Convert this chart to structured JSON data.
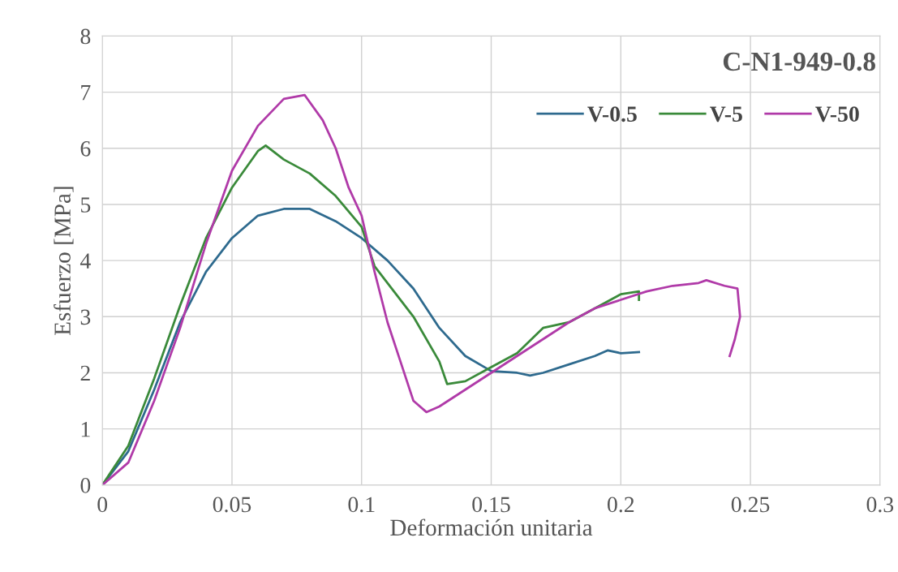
{
  "chart_data": {
    "type": "line",
    "title": "C-N1-949-0.8",
    "xlabel": "Deformación unitaria",
    "ylabel": "Esfuerzo [MPa]",
    "xlim": [
      0,
      0.3
    ],
    "xticks": [
      0,
      0.05,
      0.1,
      0.15,
      0.2,
      0.25,
      0.3
    ],
    "ylim": [
      0,
      8
    ],
    "yticks": [
      0,
      1,
      2,
      3,
      4,
      5,
      6,
      7,
      8
    ],
    "grid": true,
    "legend": "top right",
    "marker": "none",
    "line_style": "solid",
    "series": [
      {
        "name": "V-0.5",
        "color": "#2e6a8e",
        "x": [
          0,
          0.01,
          0.02,
          0.03,
          0.04,
          0.05,
          0.06,
          0.07,
          0.08,
          0.09,
          0.1,
          0.11,
          0.12,
          0.13,
          0.14,
          0.15,
          0.16,
          0.165,
          0.17,
          0.18,
          0.19,
          0.195,
          0.2,
          0.207
        ],
        "values": [
          0,
          0.6,
          1.7,
          2.9,
          3.8,
          4.4,
          4.8,
          4.92,
          4.92,
          4.7,
          4.4,
          4.0,
          3.5,
          2.8,
          2.3,
          2.03,
          2.0,
          1.95,
          2.0,
          2.15,
          2.3,
          2.4,
          2.35,
          2.37
        ]
      },
      {
        "name": "V-5",
        "color": "#3a8a3a",
        "x": [
          0,
          0.01,
          0.02,
          0.03,
          0.04,
          0.05,
          0.06,
          0.063,
          0.07,
          0.08,
          0.09,
          0.1,
          0.105,
          0.11,
          0.12,
          0.13,
          0.133,
          0.14,
          0.15,
          0.16,
          0.17,
          0.18,
          0.19,
          0.2,
          0.207,
          0.207
        ],
        "values": [
          0,
          0.7,
          1.9,
          3.2,
          4.4,
          5.3,
          5.95,
          6.05,
          5.8,
          5.55,
          5.15,
          4.6,
          3.9,
          3.6,
          3.0,
          2.2,
          1.8,
          1.85,
          2.1,
          2.35,
          2.8,
          2.9,
          3.15,
          3.4,
          3.45,
          3.3
        ]
      },
      {
        "name": "V-50",
        "color": "#b03aa8",
        "x": [
          0,
          0.01,
          0.02,
          0.03,
          0.04,
          0.05,
          0.06,
          0.07,
          0.078,
          0.085,
          0.09,
          0.095,
          0.1,
          0.105,
          0.11,
          0.115,
          0.12,
          0.125,
          0.13,
          0.14,
          0.15,
          0.16,
          0.17,
          0.18,
          0.19,
          0.2,
          0.21,
          0.22,
          0.23,
          0.233,
          0.24,
          0.245,
          0.246,
          0.244,
          0.242
        ],
        "values": [
          0,
          0.4,
          1.5,
          2.8,
          4.3,
          5.6,
          6.4,
          6.88,
          6.95,
          6.5,
          6.0,
          5.3,
          4.8,
          3.8,
          2.9,
          2.2,
          1.5,
          1.3,
          1.4,
          1.7,
          2.0,
          2.3,
          2.6,
          2.9,
          3.15,
          3.3,
          3.45,
          3.55,
          3.6,
          3.65,
          3.55,
          3.5,
          3.0,
          2.6,
          2.3
        ]
      }
    ]
  }
}
